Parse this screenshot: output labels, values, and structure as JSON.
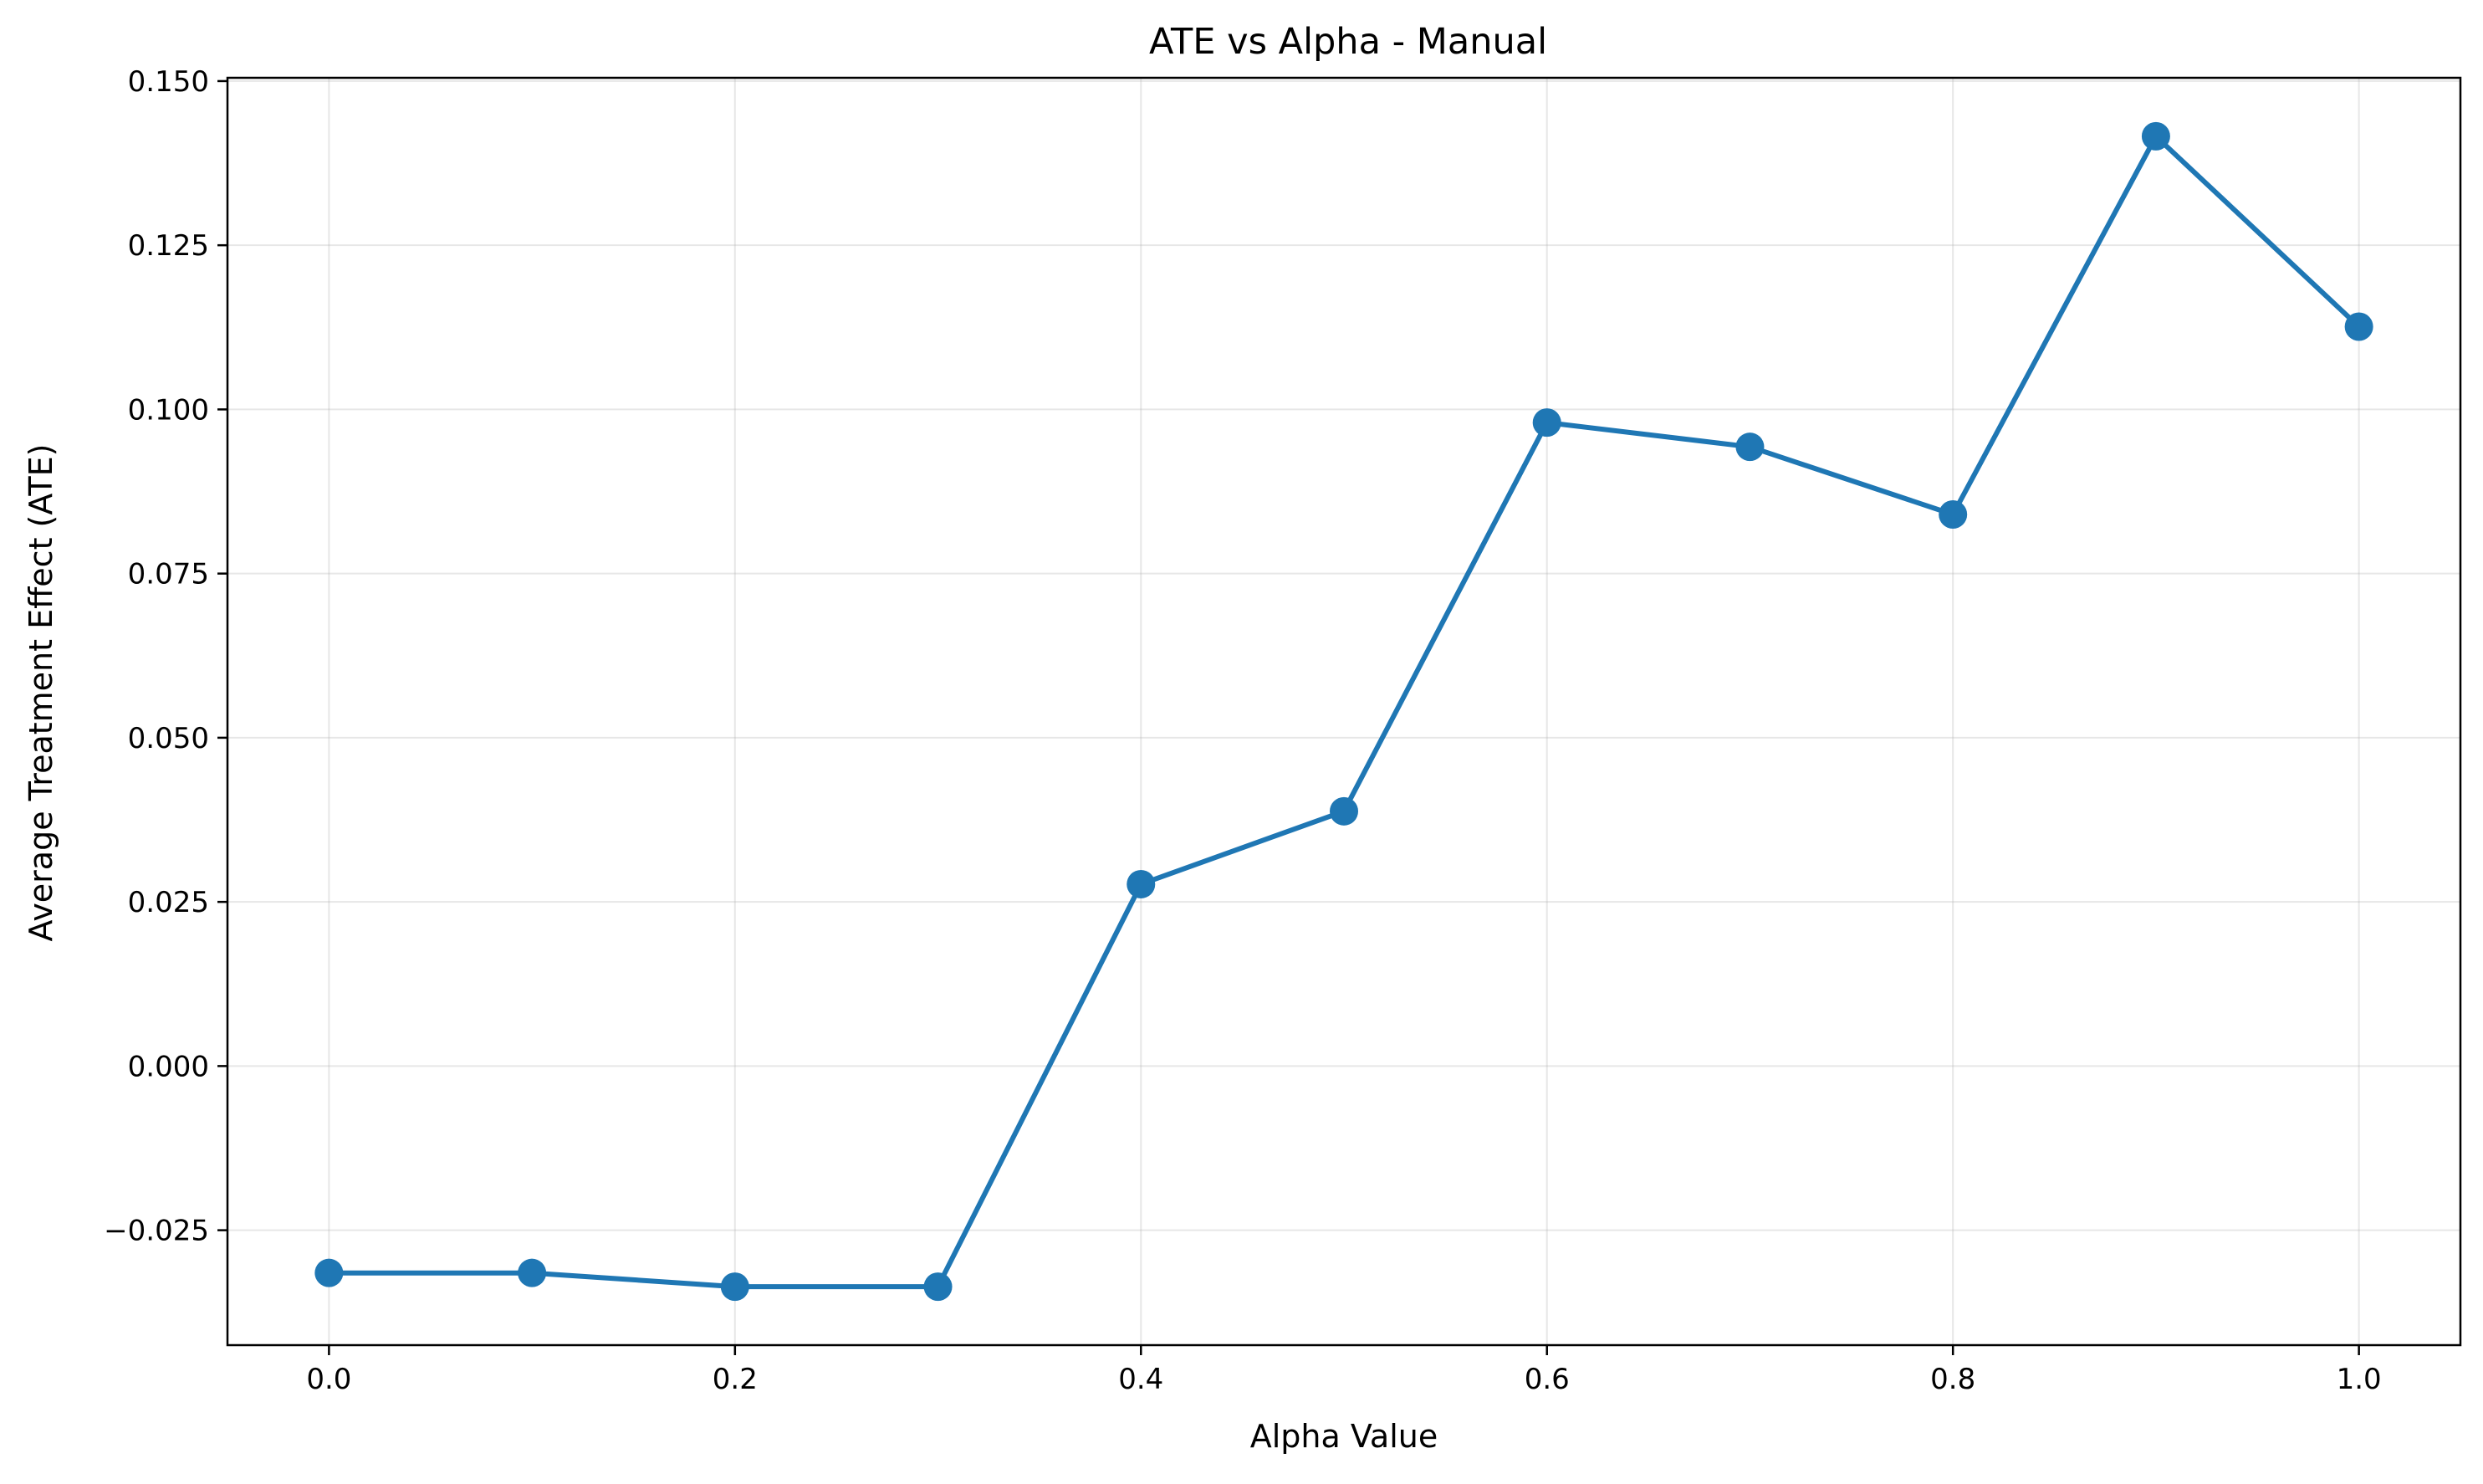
{
  "chart_data": {
    "type": "line",
    "title": "ATE vs Alpha - Manual",
    "xlabel": "Alpha Value",
    "ylabel": "Average Treatment Effect (ATE)",
    "xlim": [
      -0.05,
      1.05
    ],
    "ylim": [
      -0.0425,
      0.1505
    ],
    "xticks": [
      0.0,
      0.2,
      0.4,
      0.6,
      0.8,
      1.0
    ],
    "xtick_labels": [
      "0.0",
      "0.2",
      "0.4",
      "0.6",
      "0.8",
      "1.0"
    ],
    "yticks": [
      -0.025,
      0.0,
      0.025,
      0.05,
      0.075,
      0.1,
      0.125,
      0.15
    ],
    "ytick_labels": [
      "−0.025",
      "0.000",
      "0.025",
      "0.050",
      "0.075",
      "0.100",
      "0.125",
      "0.150"
    ],
    "grid": true,
    "color": "#1f77b4",
    "marker": "circle",
    "series": [
      {
        "x": [
          0.0,
          0.1,
          0.2,
          0.3,
          0.4,
          0.5,
          0.6,
          0.7,
          0.8,
          0.9,
          1.0
        ],
        "y": [
          -0.0315,
          -0.0315,
          -0.0336,
          -0.0336,
          0.0277,
          0.0388,
          0.098,
          0.0943,
          0.084,
          0.1416,
          0.1126
        ]
      }
    ]
  }
}
